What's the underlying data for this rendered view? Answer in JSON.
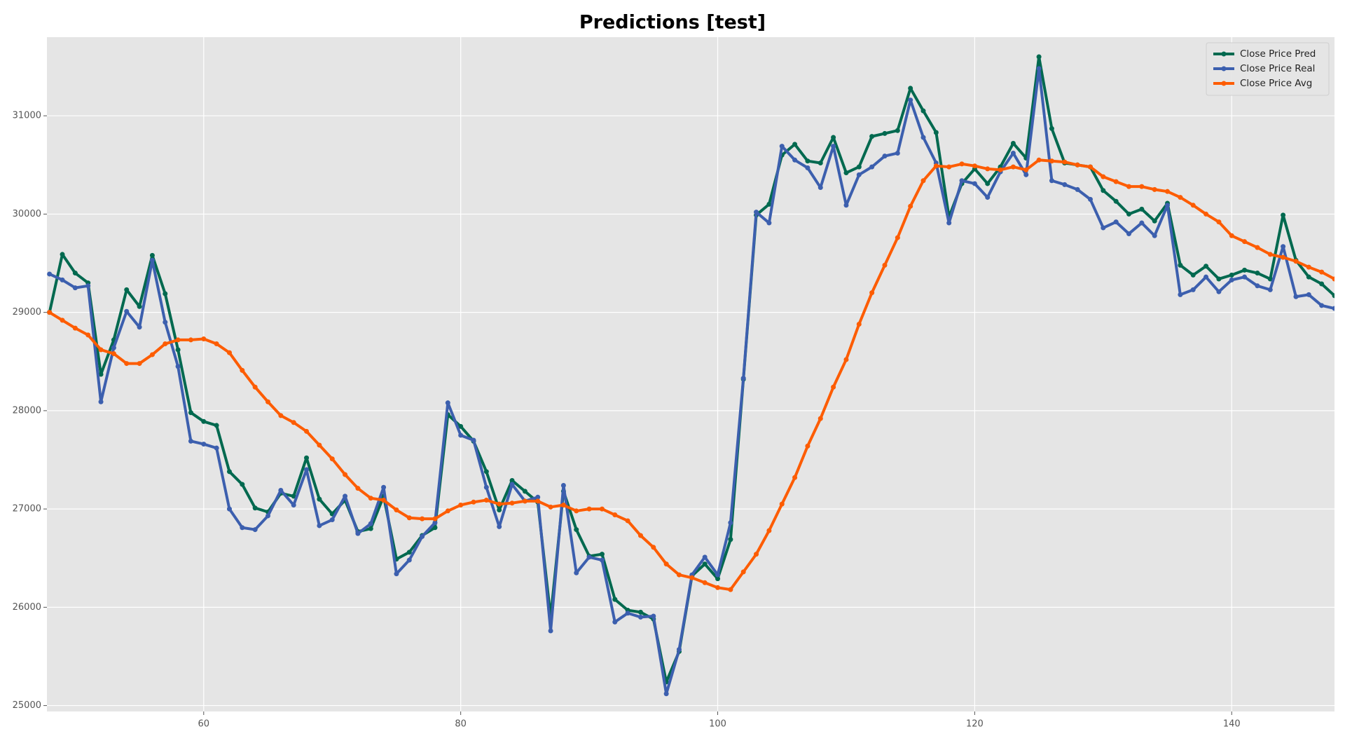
{
  "chart_data": {
    "type": "line",
    "title": "Predictions [test]",
    "x": [
      48,
      49,
      50,
      51,
      52,
      53,
      54,
      55,
      56,
      57,
      58,
      59,
      60,
      61,
      62,
      63,
      64,
      65,
      66,
      67,
      68,
      69,
      70,
      71,
      72,
      73,
      74,
      75,
      76,
      77,
      78,
      79,
      80,
      81,
      82,
      83,
      84,
      85,
      86,
      87,
      88,
      89,
      90,
      91,
      92,
      93,
      94,
      95,
      96,
      97,
      98,
      99,
      100,
      101,
      102,
      103,
      104,
      105,
      106,
      107,
      108,
      109,
      110,
      111,
      112,
      113,
      114,
      115,
      116,
      117,
      118,
      119,
      120,
      121,
      122,
      123,
      124,
      125,
      126,
      127,
      128,
      129,
      130,
      131,
      132,
      133,
      134,
      135,
      136,
      137,
      138,
      139,
      140,
      141,
      142,
      143,
      144,
      145,
      146,
      147,
      148
    ],
    "series": [
      {
        "name": "Close Price Pred",
        "color": "#00694f",
        "values": [
          29000,
          29590,
          29400,
          29300,
          28370,
          28720,
          29230,
          29060,
          29580,
          29190,
          28620,
          27980,
          27890,
          27850,
          27380,
          27250,
          27010,
          26970,
          27160,
          27130,
          27520,
          27100,
          26950,
          27090,
          26770,
          26800,
          27130,
          26490,
          26560,
          26730,
          26810,
          27960,
          27840,
          27690,
          27380,
          26990,
          27290,
          27180,
          27070,
          25900,
          27180,
          26790,
          26520,
          26540,
          26080,
          25970,
          25950,
          25880,
          25240,
          25550,
          26320,
          26440,
          26290,
          26690,
          28320,
          29990,
          30100,
          30600,
          30710,
          30540,
          30520,
          30780,
          30420,
          30480,
          30790,
          30820,
          30850,
          31280,
          31050,
          30830,
          29970,
          30310,
          30460,
          30310,
          30480,
          30720,
          30570,
          31600,
          30870,
          30520,
          30500,
          30480,
          30240,
          30130,
          30000,
          30050,
          29930,
          30110,
          29480,
          29380,
          29470,
          29340,
          29380,
          29430,
          29400,
          29340,
          29990,
          29530,
          29360,
          29290,
          29170
        ]
      },
      {
        "name": "Close Price Real",
        "color": "#3c5fae",
        "values": [
          29390,
          29330,
          29250,
          29270,
          28090,
          28640,
          29010,
          28850,
          29530,
          28900,
          28450,
          27690,
          27660,
          27620,
          27000,
          26810,
          26790,
          26930,
          27190,
          27040,
          27400,
          26830,
          26890,
          27130,
          26750,
          26850,
          27220,
          26340,
          26480,
          26720,
          26860,
          28080,
          27750,
          27700,
          27220,
          26820,
          27250,
          27080,
          27120,
          25760,
          27240,
          26350,
          26510,
          26480,
          25850,
          25940,
          25900,
          25910,
          25120,
          25570,
          26330,
          26510,
          26330,
          26860,
          28330,
          30020,
          29910,
          30690,
          30550,
          30470,
          30270,
          30690,
          30090,
          30400,
          30480,
          30590,
          30620,
          31160,
          30780,
          30520,
          29910,
          30340,
          30310,
          30170,
          30430,
          30620,
          30400,
          31480,
          30340,
          30300,
          30250,
          30150,
          29860,
          29920,
          29800,
          29910,
          29780,
          30090,
          29180,
          29230,
          29360,
          29210,
          29330,
          29360,
          29270,
          29230,
          29670,
          29160,
          29180,
          29070,
          29040
        ]
      },
      {
        "name": "Close Price Avg",
        "color": "#fd5c00",
        "values": [
          29000,
          28920,
          28840,
          28770,
          28620,
          28580,
          28480,
          28480,
          28570,
          28680,
          28720,
          28720,
          28730,
          28680,
          28590,
          28410,
          28240,
          28090,
          27950,
          27880,
          27790,
          27650,
          27510,
          27350,
          27210,
          27110,
          27090,
          26990,
          26910,
          26900,
          26900,
          26980,
          27040,
          27070,
          27090,
          27050,
          27060,
          27080,
          27080,
          27020,
          27040,
          26980,
          27000,
          27000,
          26940,
          26880,
          26730,
          26610,
          26440,
          26330,
          26300,
          26250,
          26200,
          26180,
          26360,
          26540,
          26780,
          27050,
          27320,
          27640,
          27920,
          28240,
          28520,
          28880,
          29200,
          29480,
          29760,
          30080,
          30340,
          30490,
          30480,
          30510,
          30490,
          30460,
          30450,
          30480,
          30450,
          30550,
          30540,
          30530,
          30500,
          30480,
          30380,
          30330,
          30280,
          30280,
          30250,
          30230,
          30170,
          30090,
          30000,
          29920,
          29780,
          29720,
          29660,
          29590,
          29560,
          29520,
          29460,
          29410,
          29340
        ]
      }
    ],
    "xlim": [
      47.8,
      148
    ],
    "ylim": [
      24940,
      31800
    ],
    "xticks": [
      60,
      80,
      100,
      120,
      140
    ],
    "yticks": [
      25000,
      26000,
      27000,
      28000,
      29000,
      30000,
      31000
    ],
    "grid": true,
    "legend": "upper right"
  }
}
